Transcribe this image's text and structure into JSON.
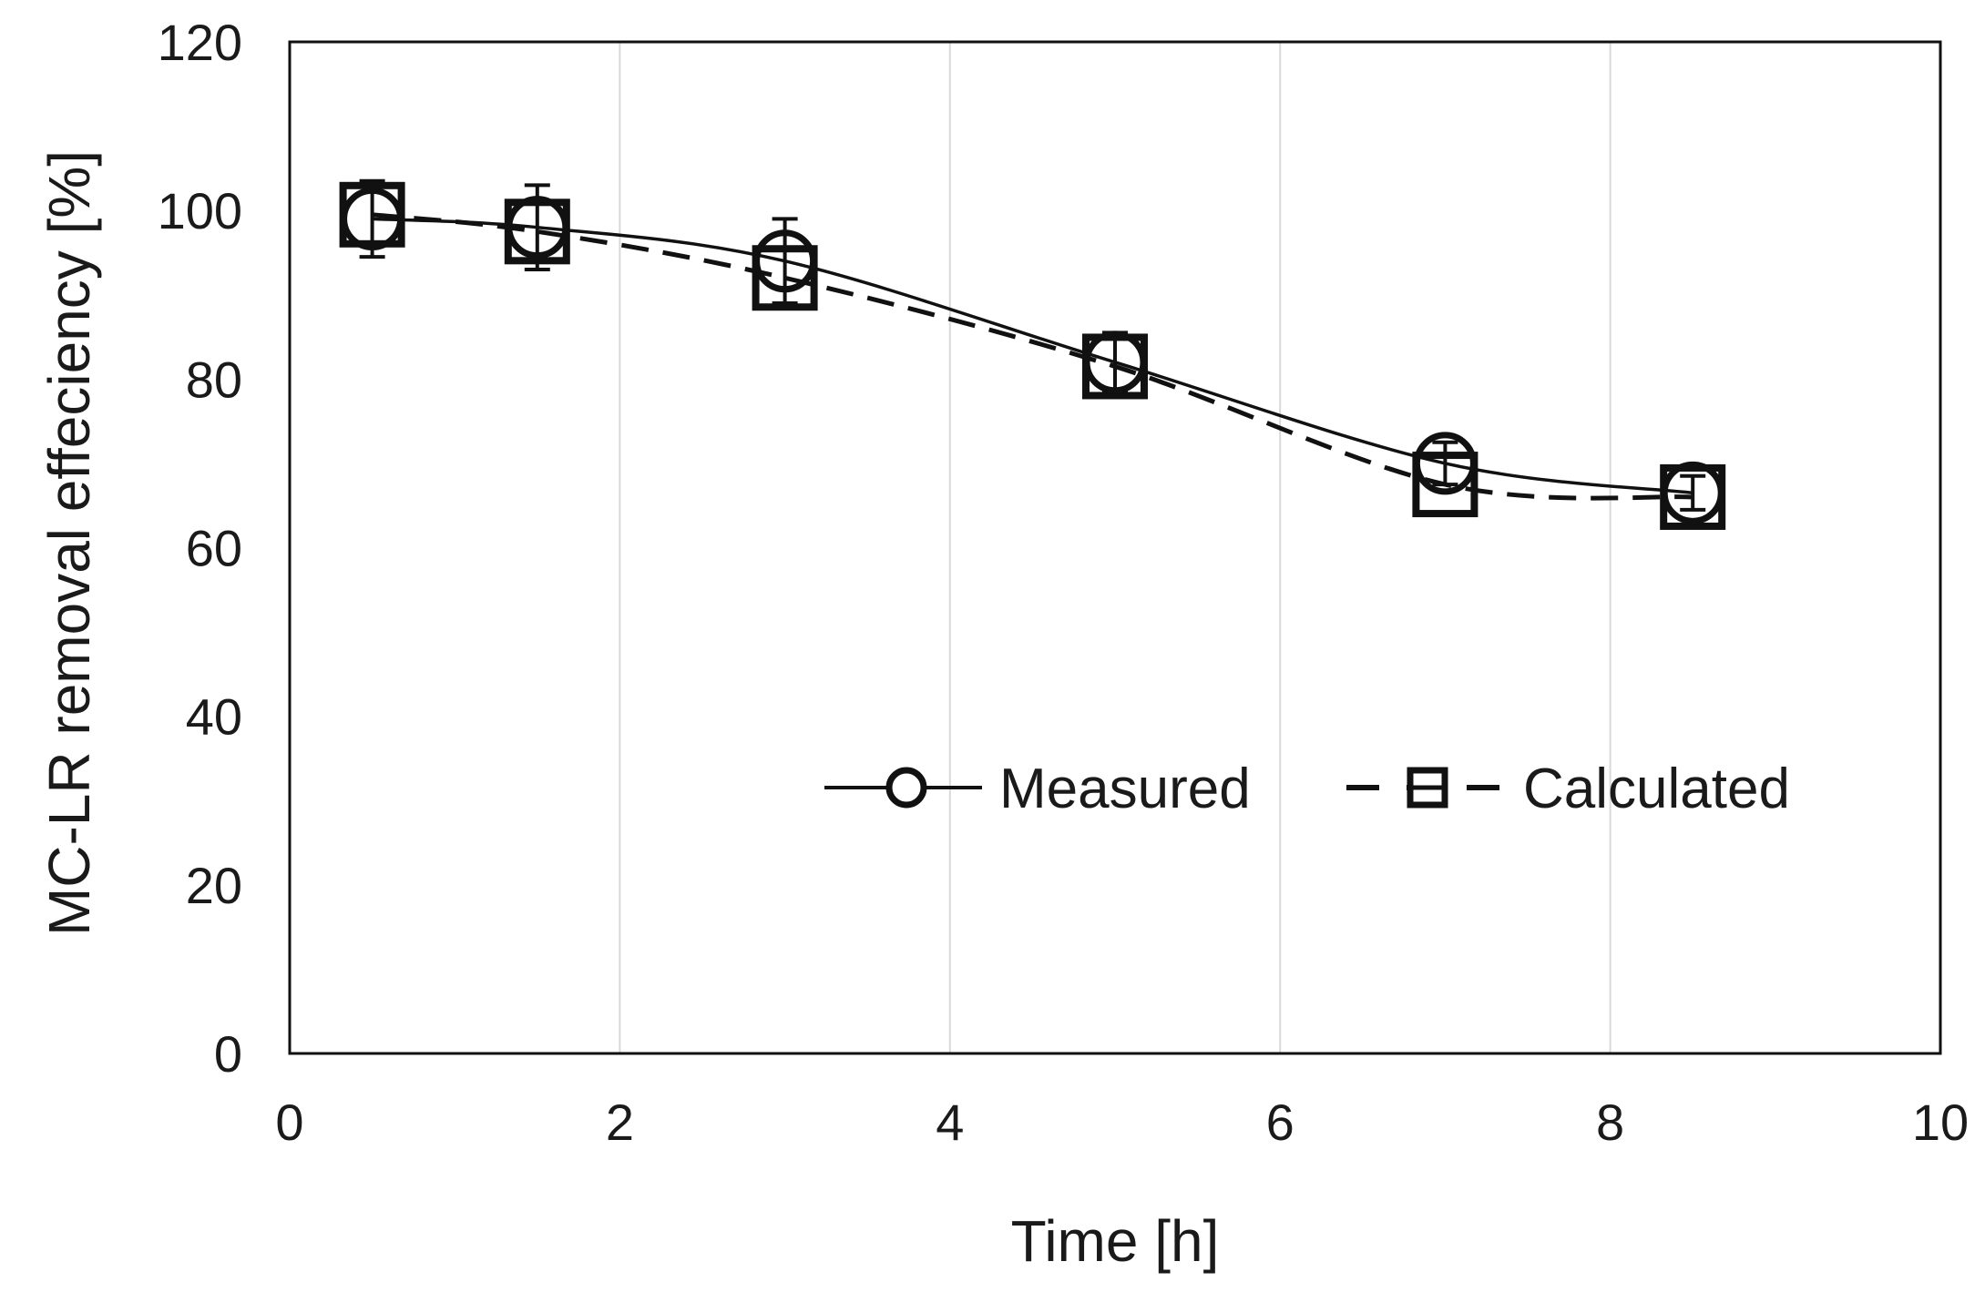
{
  "chart_data": {
    "type": "line",
    "title": "",
    "xlabel": "Time [h]",
    "ylabel": "MC-LR removal effeciency [%]",
    "xlim": [
      0,
      10
    ],
    "ylim": [
      0,
      120
    ],
    "xticks": [
      0,
      2,
      4,
      6,
      8,
      10
    ],
    "yticks": [
      0,
      20,
      40,
      60,
      80,
      100,
      120
    ],
    "grid": "vertical",
    "legend_position": "lower-right",
    "series": [
      {
        "name": "Measured",
        "marker": "circle",
        "line": "solid",
        "x": [
          0.5,
          1.5,
          3,
          5,
          7,
          8.5
        ],
        "y": [
          99,
          98,
          94,
          82,
          70,
          66.5
        ],
        "error": [
          4.5,
          5,
          5,
          3.5,
          2.5,
          2
        ]
      },
      {
        "name": "Calculated",
        "marker": "square",
        "line": "dashed",
        "x": [
          0.5,
          1.5,
          3,
          5,
          7,
          8.5
        ],
        "y": [
          99.5,
          97.5,
          92,
          81.5,
          67.5,
          66
        ],
        "error": []
      }
    ],
    "colors": {
      "line": "#111111",
      "grid": "#d9d9d9",
      "axis": "#111111"
    }
  }
}
